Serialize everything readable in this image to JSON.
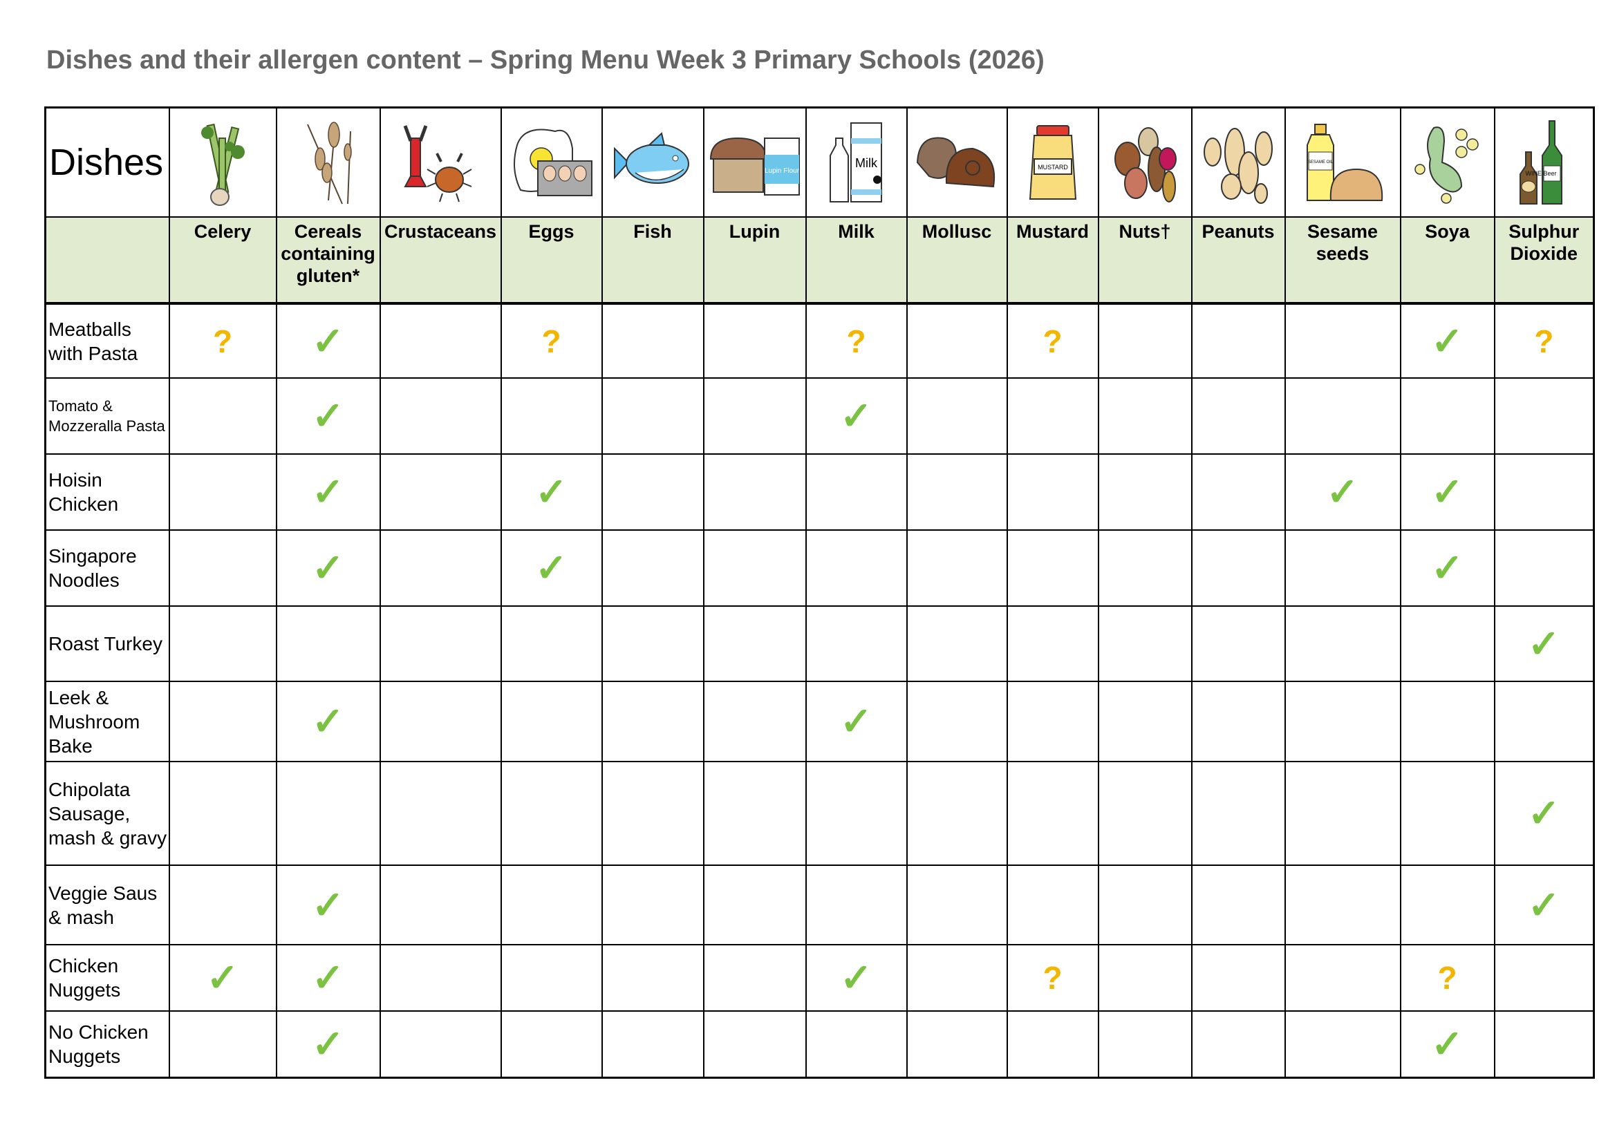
{
  "title": "Dishes and their allergen content – Spring Menu Week 3 Primary Schools (2026)",
  "dishes_header": "Dishes",
  "allergens": [
    {
      "label": "Celery",
      "icon": "celery-icon"
    },
    {
      "label": "Cereals containing gluten*",
      "icon": "wheat-icon"
    },
    {
      "label": "Crustaceans",
      "icon": "crustaceans-icon"
    },
    {
      "label": "Eggs",
      "icon": "eggs-icon"
    },
    {
      "label": "Fish",
      "icon": "fish-icon"
    },
    {
      "label": "Lupin",
      "icon": "lupin-icon",
      "icon_text": "Lupin Flour"
    },
    {
      "label": "Milk",
      "icon": "milk-icon",
      "icon_text": "Milk"
    },
    {
      "label": "Mollusc",
      "icon": "mollusc-icon"
    },
    {
      "label": "Mustard",
      "icon": "mustard-icon",
      "icon_text": "MUSTARD"
    },
    {
      "label": "Nuts†",
      "icon": "nuts-icon"
    },
    {
      "label": "Peanuts",
      "icon": "peanuts-icon"
    },
    {
      "label": "Sesame seeds",
      "icon": "sesame-icon",
      "icon_text": "SESAME OIL"
    },
    {
      "label": "Soya",
      "icon": "soya-icon"
    },
    {
      "label": "Sulphur Dioxide",
      "icon": "wine-beer-icon",
      "icon_text": "WINE Beer"
    }
  ],
  "marks": {
    "check": "✓",
    "maybe": "?",
    "check_color": "#7cc242",
    "maybe_color": "#f2b600",
    "header_bg": "#e0ebcf"
  },
  "rows": [
    {
      "dish": "Meatballs with Pasta",
      "cells": [
        "?",
        "✓",
        "",
        "?",
        "",
        "",
        "?",
        "",
        "?",
        "",
        "",
        "",
        "✓",
        "?"
      ]
    },
    {
      "dish": "Tomato & Mozzeralla Pasta",
      "small": true,
      "cells": [
        "",
        "✓",
        "",
        "",
        "",
        "",
        "✓",
        "",
        "",
        "",
        "",
        "",
        "",
        ""
      ]
    },
    {
      "dish": "Hoisin Chicken",
      "cells": [
        "",
        "✓",
        "",
        "✓",
        "",
        "",
        "",
        "",
        "",
        "",
        "",
        "✓",
        "✓",
        ""
      ]
    },
    {
      "dish": "Singapore Noodles",
      "cells": [
        "",
        "✓",
        "",
        "✓",
        "",
        "",
        "",
        "",
        "",
        "",
        "",
        "",
        "✓",
        ""
      ]
    },
    {
      "dish": "Roast Turkey",
      "cells": [
        "",
        "",
        "",
        "",
        "",
        "",
        "",
        "",
        "",
        "",
        "",
        "",
        "",
        "✓"
      ]
    },
    {
      "dish": "Leek & Mushroom Bake",
      "cells": [
        "",
        "✓",
        "",
        "",
        "",
        "",
        "✓",
        "",
        "",
        "",
        "",
        "",
        "",
        ""
      ]
    },
    {
      "dish": "Chipolata Sausage, mash & gravy",
      "cells": [
        "",
        "",
        "",
        "",
        "",
        "",
        "",
        "",
        "",
        "",
        "",
        "",
        "",
        "✓"
      ]
    },
    {
      "dish": "Veggie Saus & mash",
      "cells": [
        "",
        "✓",
        "",
        "",
        "",
        "",
        "",
        "",
        "",
        "",
        "",
        "",
        "",
        "✓"
      ]
    },
    {
      "dish": "Chicken Nuggets",
      "cells": [
        "✓",
        "✓",
        "",
        "",
        "",
        "",
        "✓",
        "",
        "?",
        "",
        "",
        "",
        "?",
        ""
      ]
    },
    {
      "dish": "No Chicken Nuggets",
      "cells": [
        "",
        "✓",
        "",
        "",
        "",
        "",
        "",
        "",
        "",
        "",
        "",
        "",
        "✓",
        ""
      ]
    }
  ]
}
